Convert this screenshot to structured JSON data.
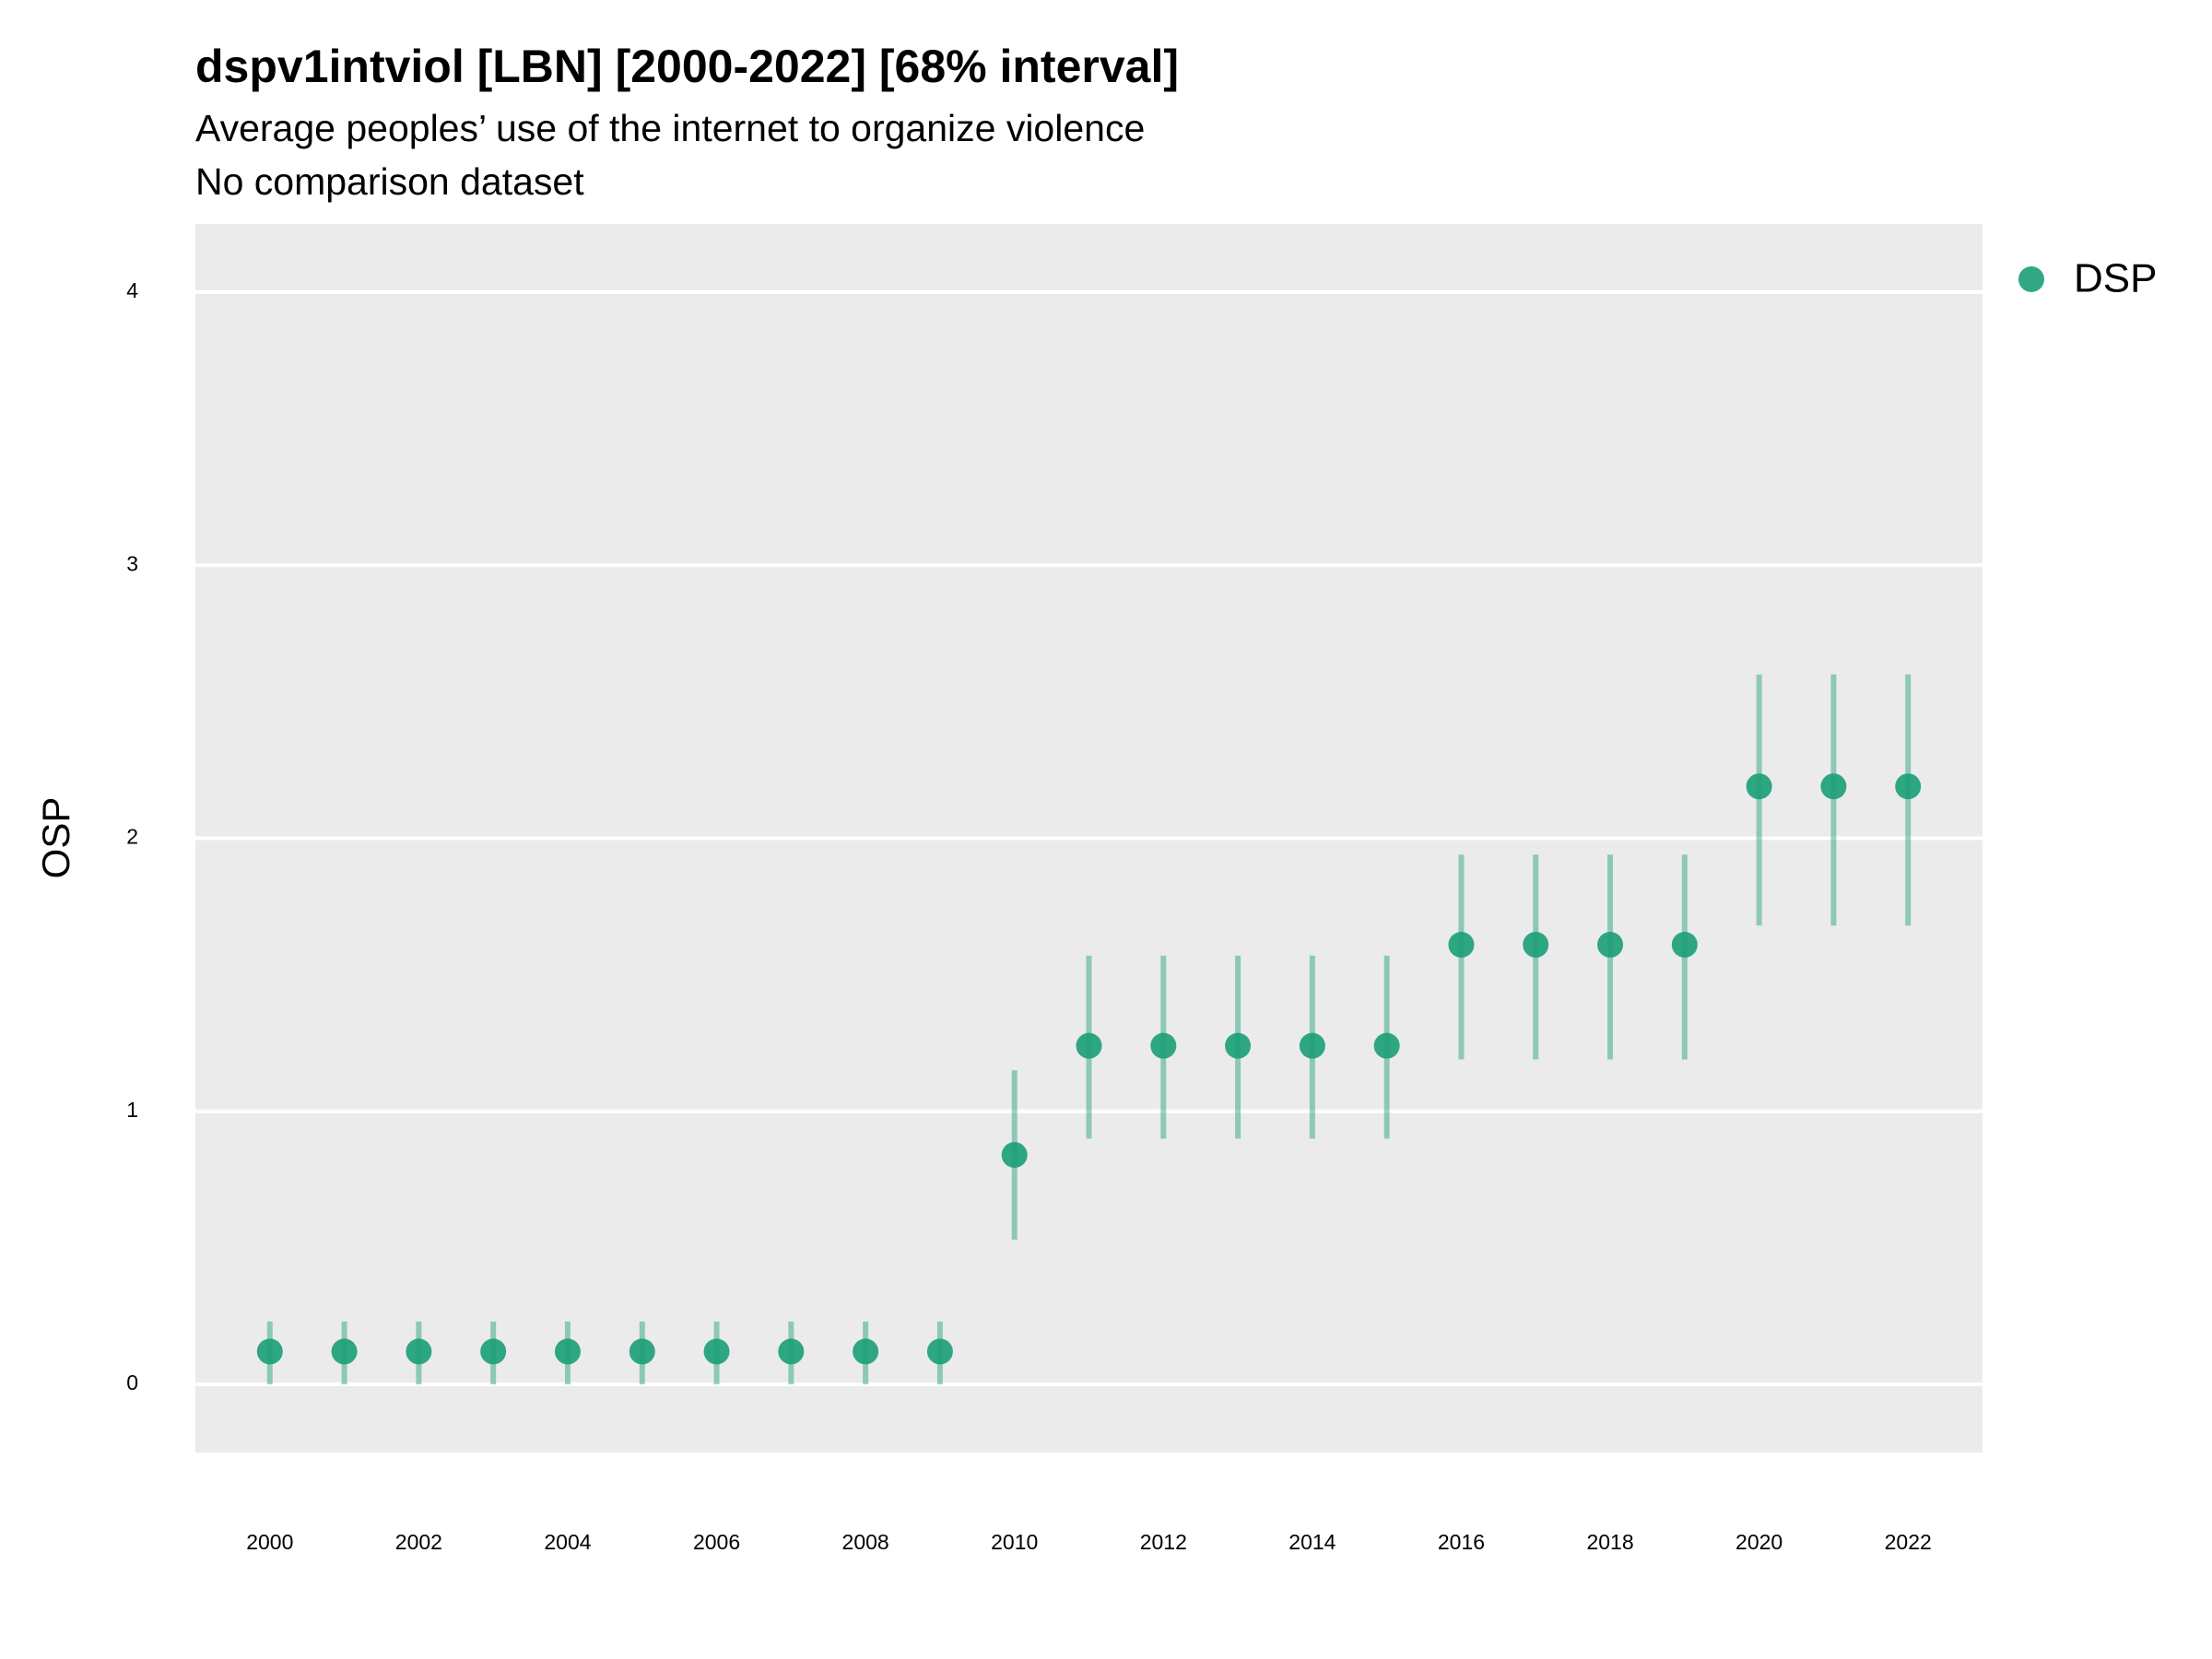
{
  "chart_data": {
    "type": "pointrange",
    "title": "dspv1intviol [LBN] [2000-2022] [68% interval]",
    "subtitle": "Average peoples’ use of the internet to organize violence",
    "caption": "No comparison dataset",
    "y_label": "OSP",
    "x": [
      2000,
      2001,
      2002,
      2003,
      2004,
      2005,
      2006,
      2007,
      2008,
      2009,
      2010,
      2011,
      2012,
      2013,
      2014,
      2015,
      2016,
      2017,
      2018,
      2019,
      2020,
      2021,
      2022
    ],
    "series": [
      {
        "name": "DSP",
        "color": "#1b9e77",
        "values": [
          0.12,
          0.12,
          0.12,
          0.12,
          0.12,
          0.12,
          0.12,
          0.12,
          0.12,
          0.12,
          0.84,
          1.24,
          1.24,
          1.24,
          1.24,
          1.24,
          1.61,
          1.61,
          1.61,
          1.61,
          2.19,
          2.19,
          2.19
        ],
        "lower": [
          0,
          0,
          0,
          0,
          0,
          0,
          0,
          0,
          0,
          0,
          0.53,
          0.9,
          0.9,
          0.9,
          0.9,
          0.9,
          1.19,
          1.19,
          1.19,
          1.19,
          1.68,
          1.68,
          1.68
        ],
        "upper": [
          0.23,
          0.23,
          0.23,
          0.23,
          0.23,
          0.23,
          0.23,
          0.23,
          0.23,
          0.23,
          1.15,
          1.57,
          1.57,
          1.57,
          1.57,
          1.57,
          1.94,
          1.94,
          1.94,
          1.94,
          2.6,
          2.6,
          2.6
        ]
      }
    ],
    "xlim": [
      1999,
      2023
    ],
    "xticks": [
      2000,
      2002,
      2004,
      2006,
      2008,
      2010,
      2012,
      2014,
      2016,
      2018,
      2020,
      2022
    ],
    "ylim": [
      -0.25,
      4.25
    ],
    "yticks": [
      0,
      1,
      2,
      3,
      4
    ],
    "grid": true,
    "legend": "right"
  }
}
